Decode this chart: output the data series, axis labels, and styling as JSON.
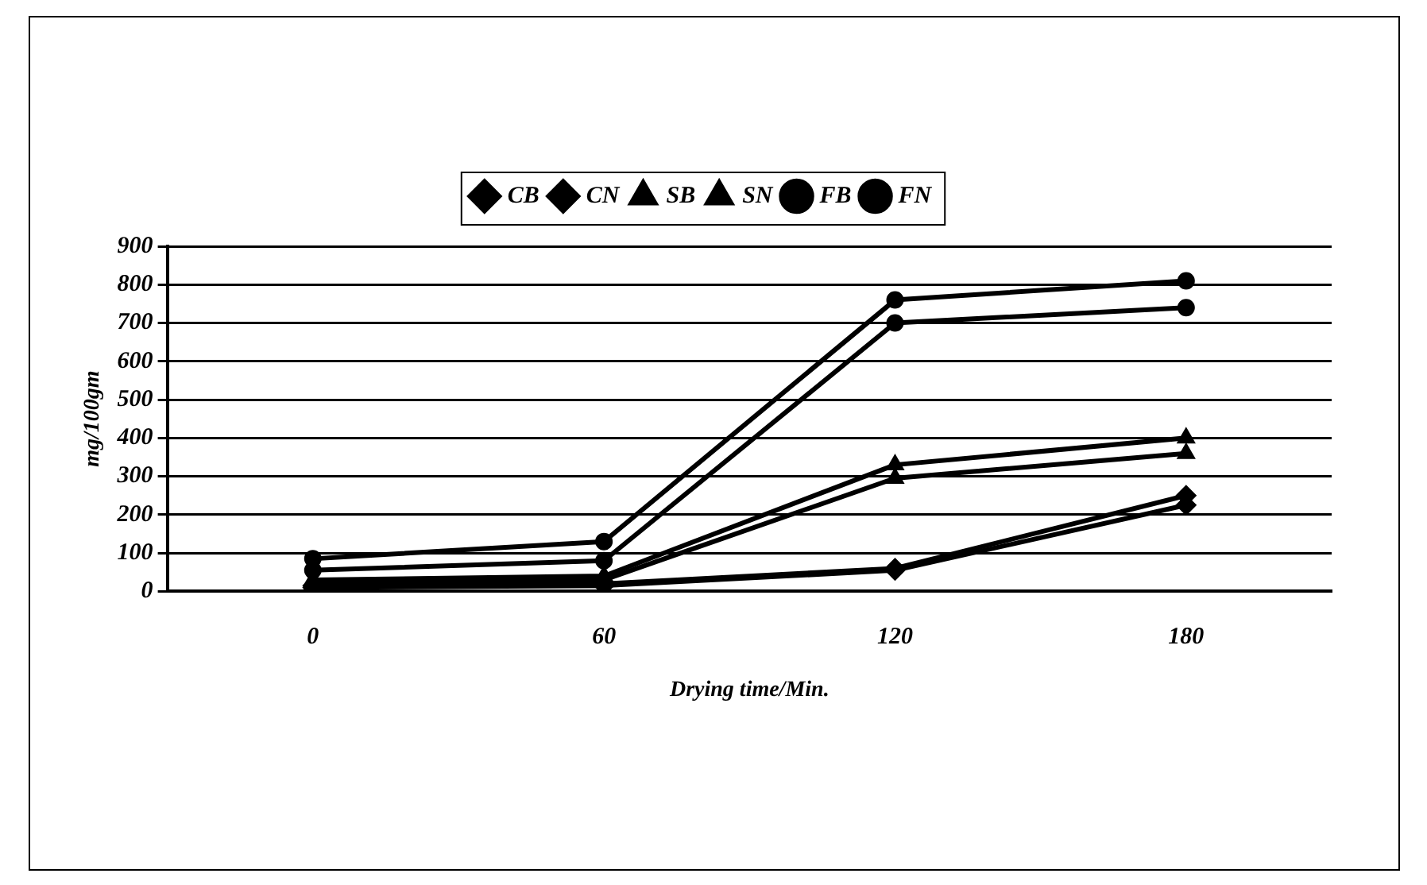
{
  "chart_data": {
    "type": "line",
    "xlabel": "Drying time/Min.",
    "ylabel": "mg/100gm",
    "categories": [
      "0",
      "60",
      "120",
      "180"
    ],
    "series": [
      {
        "name": "CB",
        "color": "#000000",
        "marker": "diamond",
        "values": [
          10,
          15,
          55,
          225
        ]
      },
      {
        "name": "CN",
        "color": "#000000",
        "marker": "diamond",
        "values": [
          15,
          20,
          60,
          250
        ]
      },
      {
        "name": "SB",
        "color": "#000000",
        "marker": "triangle",
        "values": [
          20,
          30,
          295,
          360
        ]
      },
      {
        "name": "SN",
        "color": "#000000",
        "marker": "triangle",
        "values": [
          30,
          40,
          330,
          400
        ]
      },
      {
        "name": "FB",
        "color": "#000000",
        "marker": "circle",
        "values": [
          55,
          80,
          700,
          740
        ]
      },
      {
        "name": "FN",
        "color": "#000000",
        "marker": "circle",
        "values": [
          85,
          130,
          760,
          810
        ]
      }
    ],
    "ylim": [
      0,
      900
    ],
    "yticks": [
      0,
      100,
      200,
      300,
      400,
      500,
      600,
      700,
      800,
      900
    ],
    "grid": "y",
    "legend": "top",
    "line_style": "solid"
  }
}
